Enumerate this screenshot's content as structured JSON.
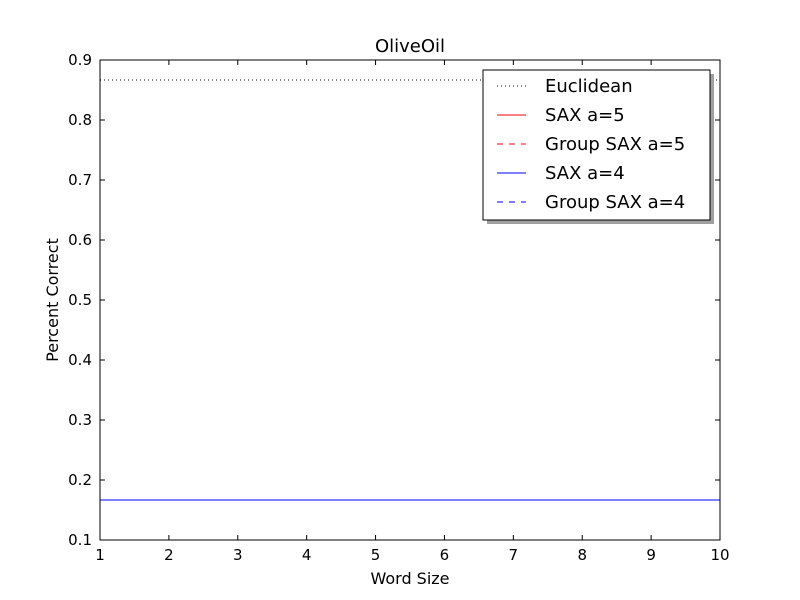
{
  "chart_data": {
    "type": "line",
    "title": "OliveOil",
    "xlabel": "Word Size",
    "ylabel": "Percent Correct",
    "xlim": [
      1,
      10
    ],
    "ylim": [
      0.1,
      0.9
    ],
    "x": [
      1,
      2,
      3,
      4,
      5,
      6,
      7,
      8,
      9,
      10
    ],
    "xticks": [
      "1",
      "2",
      "3",
      "4",
      "5",
      "6",
      "7",
      "8",
      "9",
      "10"
    ],
    "yticks": [
      "0.1",
      "0.2",
      "0.3",
      "0.4",
      "0.5",
      "0.6",
      "0.7",
      "0.8",
      "0.9"
    ],
    "grid": false,
    "legend_position": "top-right",
    "series": [
      {
        "name": "Euclidean",
        "color": "#000000",
        "style": "dotted",
        "values": [
          0.8667,
          0.8667,
          0.8667,
          0.8667,
          0.8667,
          0.8667,
          0.8667,
          0.8667,
          0.8667,
          0.8667
        ]
      },
      {
        "name": "SAX a=5",
        "color": "#ff0000",
        "style": "solid",
        "values": [
          0.1667,
          0.1667,
          0.1667,
          0.1667,
          0.1667,
          0.1667,
          0.1667,
          0.1667,
          0.1667,
          0.1667
        ]
      },
      {
        "name": "Group SAX a=5",
        "color": "#ff0000",
        "style": "dashed",
        "values": [
          0.1667,
          0.1667,
          0.1667,
          0.1667,
          0.1667,
          0.1667,
          0.1667,
          0.1667,
          0.1667,
          0.1667
        ]
      },
      {
        "name": "SAX a=4",
        "color": "#0000ff",
        "style": "solid",
        "values": [
          0.1667,
          0.1667,
          0.1667,
          0.1667,
          0.1667,
          0.1667,
          0.1667,
          0.1667,
          0.1667,
          0.1667
        ]
      },
      {
        "name": "Group SAX a=4",
        "color": "#0000ff",
        "style": "dashed",
        "values": [
          0.1667,
          0.1667,
          0.1667,
          0.1667,
          0.1667,
          0.1667,
          0.1667,
          0.1667,
          0.1667,
          0.1667
        ]
      }
    ]
  }
}
